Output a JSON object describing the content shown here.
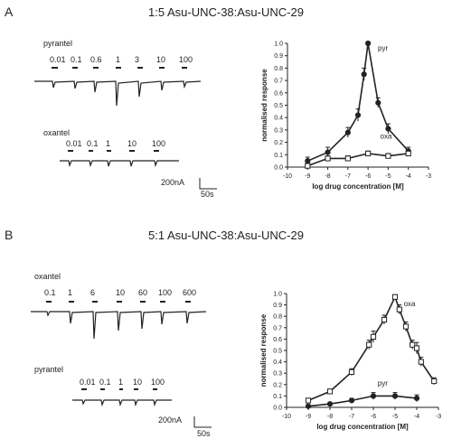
{
  "panels": [
    {
      "letter": "A",
      "title": "1:5 Asu-UNC-38:Asu-UNC-29",
      "trace_top": {
        "drug": "pyrantel",
        "concentrations": [
          "0.01",
          "0.1",
          "0.6",
          "1",
          "3",
          "10",
          "100"
        ]
      },
      "trace_bottom": {
        "drug": "oxantel",
        "concentrations": [
          "0.01",
          "0.1",
          "1",
          "10",
          "100"
        ]
      },
      "scale_bar": {
        "current": "200nA",
        "time": "50s"
      }
    },
    {
      "letter": "B",
      "title": "5:1 Asu-UNC-38:Asu-UNC-29",
      "trace_top": {
        "drug": "oxantel",
        "concentrations": [
          "0.1",
          "1",
          "6",
          "10",
          "60",
          "100",
          "600"
        ]
      },
      "trace_bottom": {
        "drug": "pyrantel",
        "concentrations": [
          "0.01",
          "0.1",
          "1",
          "10",
          "100"
        ]
      },
      "scale_bar": {
        "current": "200nA",
        "time": "50s"
      }
    }
  ],
  "chart_data": [
    {
      "type": "line",
      "panel": "A",
      "xlabel": "log drug concentration [M]",
      "ylabel": "normalised response",
      "xlim": [
        -10,
        -3
      ],
      "ylim": [
        0,
        1.0
      ],
      "xticks": [
        "-10",
        "-9",
        "-8",
        "-7",
        "-6",
        "-5",
        "-4",
        "-3"
      ],
      "yticks": [
        "0.0",
        "0.1",
        "0.2",
        "0.3",
        "0.4",
        "0.5",
        "0.6",
        "0.7",
        "0.8",
        "0.9",
        "1.0"
      ],
      "series": [
        {
          "name": "pyr",
          "marker": "filled-circle",
          "x": [
            -9,
            -8,
            -7,
            -6.5,
            -6.2,
            -6,
            -5.5,
            -5,
            -4
          ],
          "y": [
            0.05,
            0.12,
            0.28,
            0.42,
            0.75,
            1.0,
            0.52,
            0.31,
            0.13
          ],
          "err": [
            0.03,
            0.04,
            0.04,
            0.05,
            0.05,
            0,
            0.04,
            0.04,
            0.03
          ]
        },
        {
          "name": "oxa",
          "marker": "open-square",
          "x": [
            -9,
            -8,
            -7,
            -6,
            -5,
            -4
          ],
          "y": [
            0.01,
            0.07,
            0.07,
            0.11,
            0.09,
            0.11
          ],
          "err": [
            0.01,
            0.02,
            0.02,
            0.02,
            0.02,
            0.02
          ]
        }
      ]
    },
    {
      "type": "line",
      "panel": "B",
      "xlabel": "log drug concentration [M]",
      "ylabel": "normalised response",
      "xlim": [
        -10,
        -3
      ],
      "ylim": [
        0,
        1.0
      ],
      "xticks": [
        "-10",
        "-9",
        "-8",
        "-7",
        "-6",
        "-5",
        "-4",
        "-3"
      ],
      "yticks": [
        "0.0",
        "0.1",
        "0.2",
        "0.3",
        "0.4",
        "0.5",
        "0.6",
        "0.7",
        "0.8",
        "0.9",
        "1.0"
      ],
      "series": [
        {
          "name": "oxa",
          "marker": "open-square",
          "x": [
            -9,
            -8,
            -7,
            -6.2,
            -6,
            -5.5,
            -5,
            -4.8,
            -4.5,
            -4.2,
            -4,
            -3.8,
            -3.2
          ],
          "y": [
            0.06,
            0.14,
            0.31,
            0.55,
            0.62,
            0.77,
            0.97,
            0.86,
            0.71,
            0.55,
            0.52,
            0.4,
            0.23
          ],
          "err": [
            0.02,
            0.02,
            0.03,
            0.04,
            0.05,
            0.04,
            0.02,
            0.04,
            0.04,
            0.04,
            0.05,
            0.04,
            0.03
          ]
        },
        {
          "name": "pyr",
          "marker": "filled-circle",
          "x": [
            -9,
            -8,
            -7,
            -6,
            -5,
            -4
          ],
          "y": [
            0.01,
            0.03,
            0.06,
            0.1,
            0.1,
            0.08
          ],
          "err": [
            0.01,
            0.01,
            0.02,
            0.03,
            0.03,
            0.03
          ]
        }
      ]
    }
  ]
}
